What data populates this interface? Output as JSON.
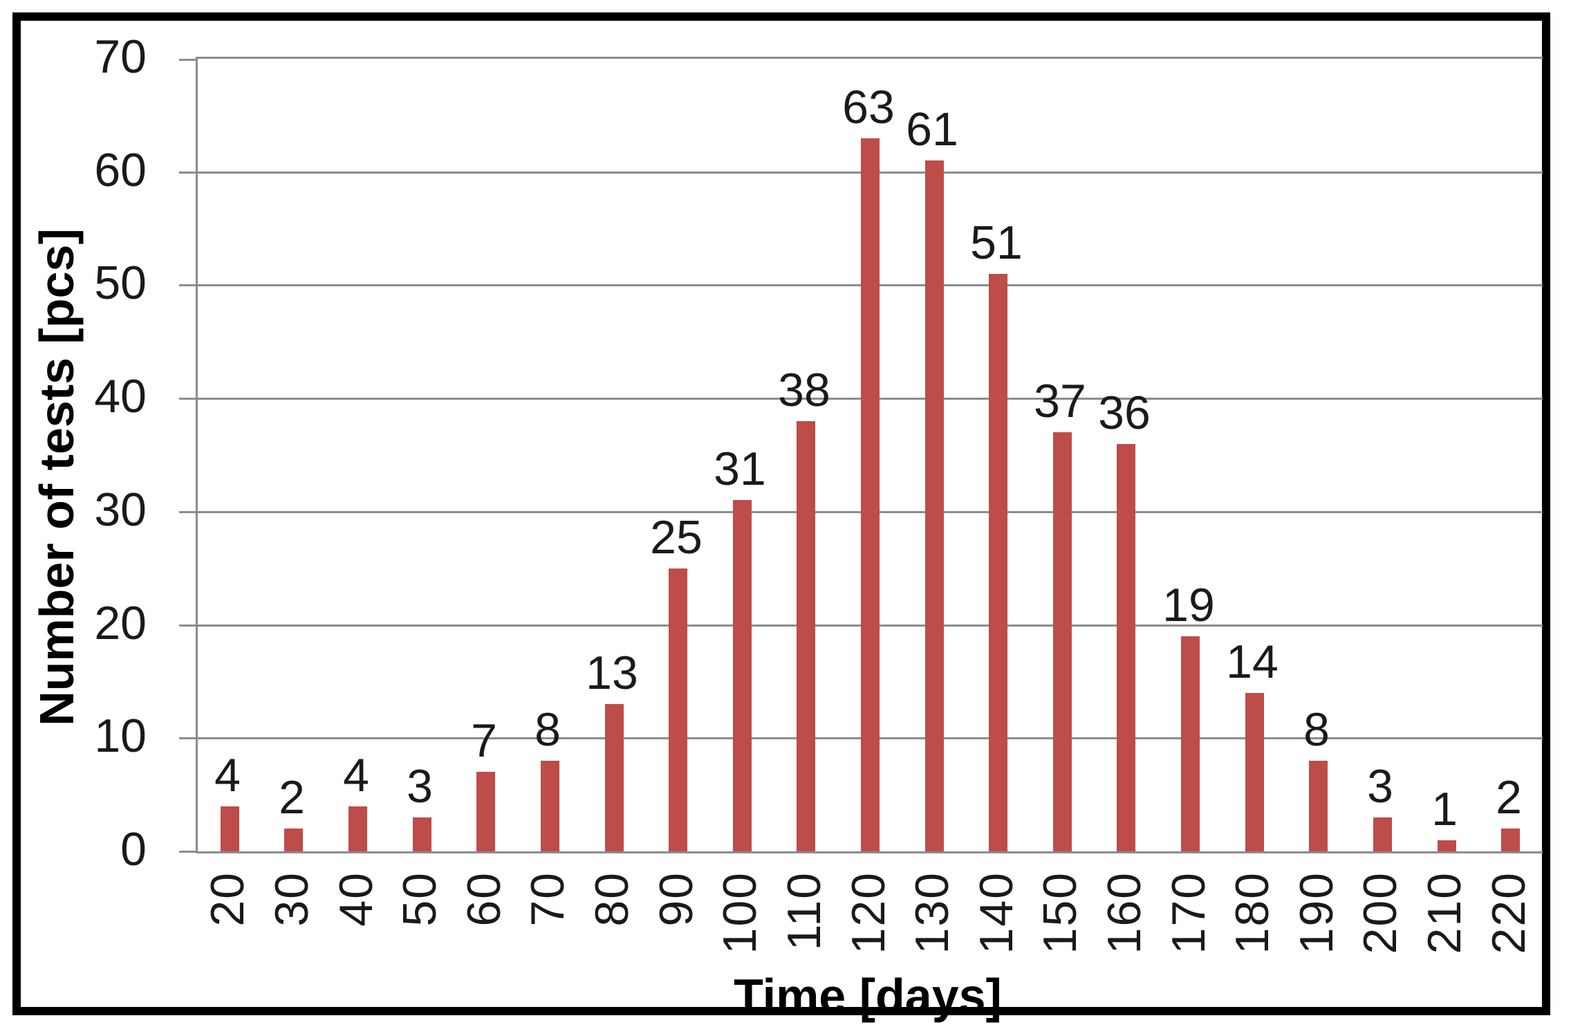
{
  "chart_data": {
    "type": "bar",
    "title": "",
    "xlabel": "Time [days]",
    "ylabel": "Number of tests [pcs]",
    "categories": [
      "20",
      "30",
      "40",
      "50",
      "60",
      "70",
      "80",
      "90",
      "100",
      "110",
      "120",
      "130",
      "140",
      "150",
      "160",
      "170",
      "180",
      "190",
      "200",
      "210",
      "220"
    ],
    "values": [
      4,
      2,
      4,
      3,
      7,
      8,
      13,
      25,
      31,
      38,
      63,
      61,
      51,
      37,
      36,
      19,
      14,
      8,
      3,
      1,
      2
    ],
    "yticks": [
      0,
      10,
      20,
      30,
      40,
      50,
      60,
      70
    ],
    "ylim": [
      0,
      70
    ],
    "grid": true,
    "legend_position": "none",
    "data_labels": true,
    "colors": {
      "bar": "#be4c49",
      "gridline": "#8c8c8c",
      "text": "#1a1a1a",
      "frame_border": "#000000",
      "background": "#ffffff"
    }
  }
}
